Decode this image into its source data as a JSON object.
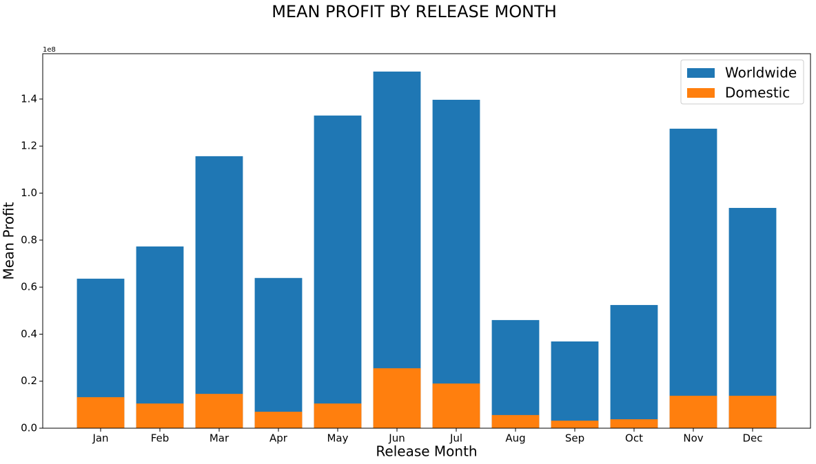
{
  "chart_data": {
    "type": "bar",
    "title": "MEAN PROFIT BY RELEASE MONTH",
    "xlabel": "Release Month",
    "ylabel": "Mean Profit",
    "offset_label": "1e8",
    "categories": [
      "Jan",
      "Feb",
      "Mar",
      "Apr",
      "May",
      "Jun",
      "Jul",
      "Aug",
      "Sep",
      "Oct",
      "Nov",
      "Dec"
    ],
    "series": [
      {
        "name": "Worldwide",
        "color": "#1f77b4",
        "values": [
          0.636,
          0.773,
          1.157,
          0.639,
          1.33,
          1.517,
          1.397,
          0.46,
          0.369,
          0.524,
          1.274,
          0.937
        ]
      },
      {
        "name": "Domestic",
        "color": "#ff7f0e",
        "values": [
          0.132,
          0.105,
          0.146,
          0.07,
          0.105,
          0.255,
          0.19,
          0.056,
          0.032,
          0.038,
          0.138,
          0.138
        ]
      }
    ],
    "ylim": [
      0,
      1.593
    ],
    "yticks": [
      {
        "value": 0,
        "label": "0.0"
      },
      0.2,
      0.4,
      0.6,
      0.8,
      {
        "value": 1,
        "label": "1.0"
      },
      1.2,
      1.4
    ],
    "legend": "upper right"
  }
}
